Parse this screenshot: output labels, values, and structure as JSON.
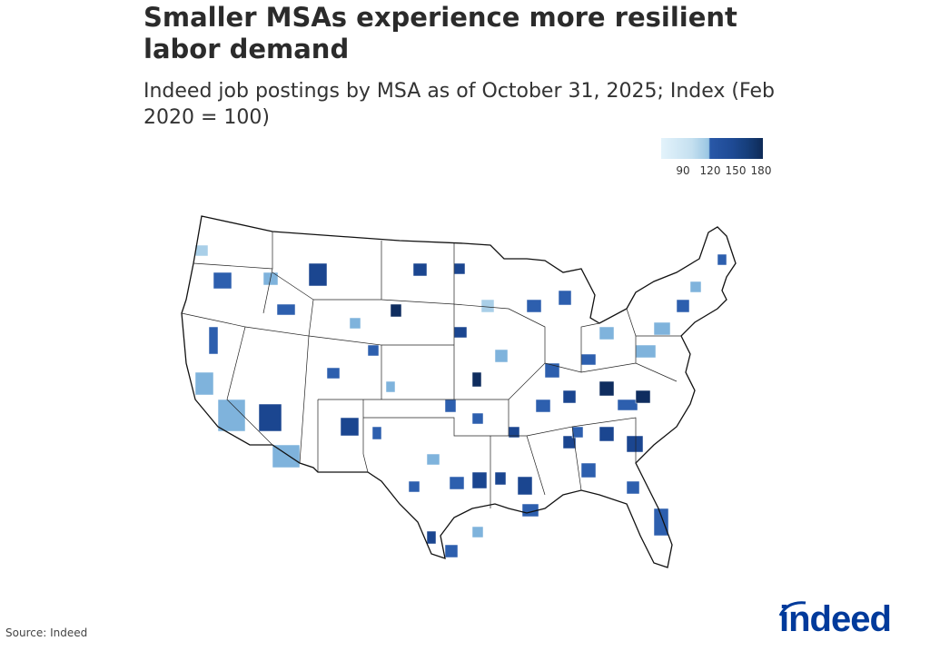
{
  "title": "Smaller MSAs experience more resilient labor demand",
  "subtitle": "Indeed job postings by MSA as of October 31, 2025; Index (Feb 2020 = 100)",
  "legend": {
    "ticks": [
      "90",
      "120",
      "150",
      "180"
    ],
    "colors": {
      "low": "#e3f3fb",
      "mid": "#9cc7e3",
      "high": "#2958a8",
      "max": "#0e2a57"
    }
  },
  "source": "Source: Indeed",
  "logo": "indeed",
  "brand_color": "#003a9b"
}
